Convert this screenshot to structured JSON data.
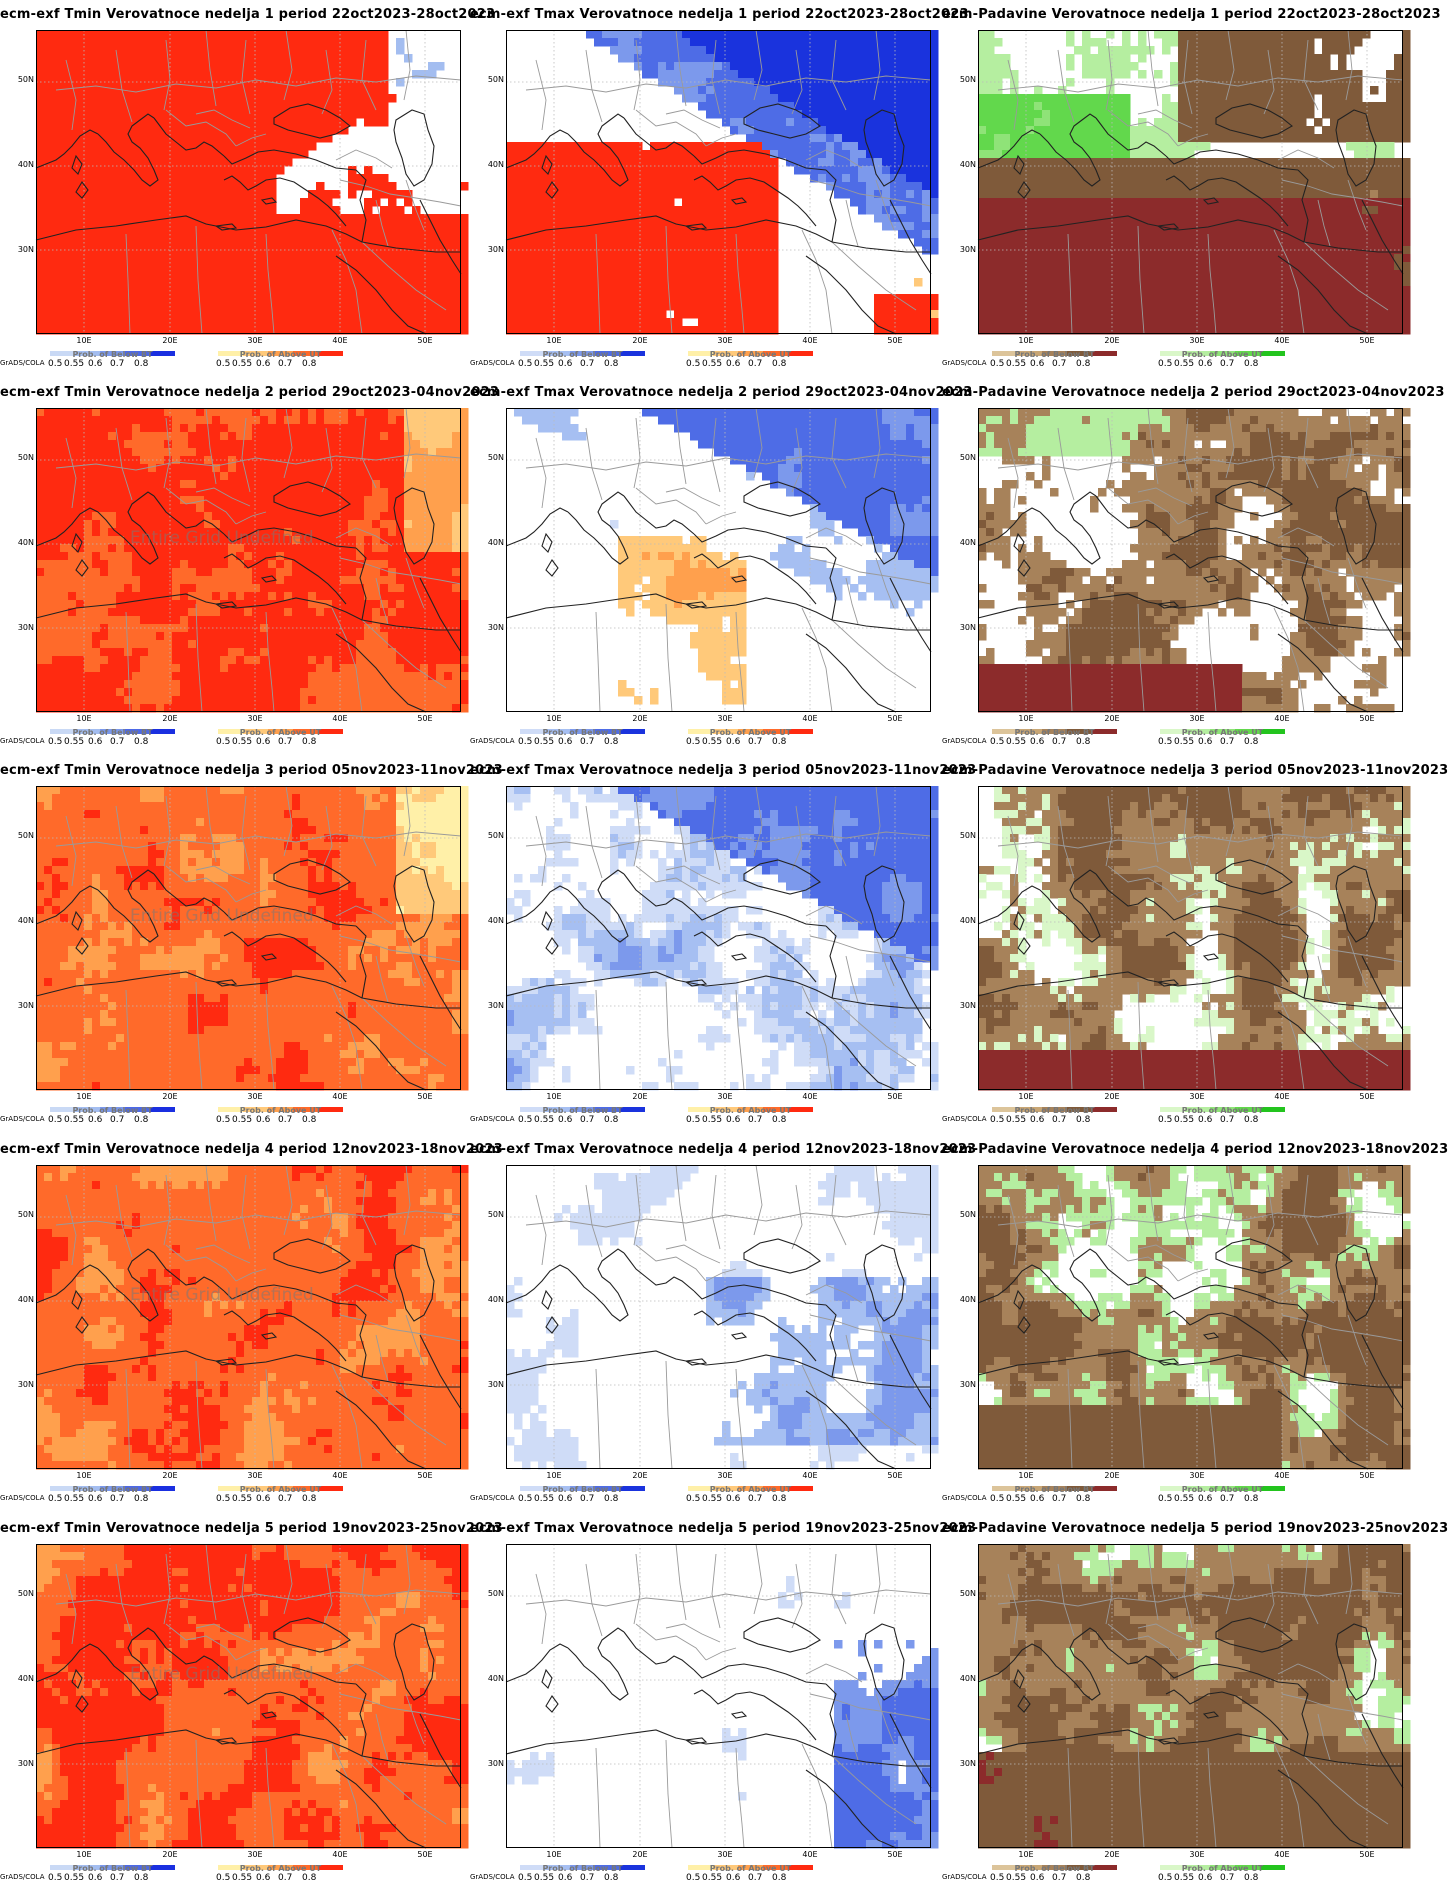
{
  "common": {
    "lat_labels": [
      "50N",
      "40N",
      "30N"
    ],
    "lon_labels": [
      "10E",
      "20E",
      "30E",
      "40E",
      "50E"
    ],
    "credit": "GrADS/COLA",
    "legend_ticks": [
      "0.5",
      "0.55",
      "0.6",
      "0.7",
      "0.8"
    ],
    "overlay_text": "Entire Grid Undefined"
  },
  "color_scales": {
    "tmin_below": [
      "#c9d9f5",
      "#a3bdf0",
      "#7a98ec",
      "#4d69e6",
      "#1a2fe0"
    ],
    "warm_above": [
      "#fff0a8",
      "#ffc97a",
      "#ffa04d",
      "#ff6a2a",
      "#ff2a10"
    ],
    "tmax_below": [
      "#cfdcf7",
      "#a6bff2",
      "#7c99ec",
      "#4e6ce6",
      "#1a33dd"
    ],
    "precip_below": [
      "#dcc49a",
      "#c8a675",
      "#a7825a",
      "#7f5a3a",
      "#8c2b2b"
    ],
    "precip_above": [
      "#d9f7c8",
      "#b5eea0",
      "#8fe378",
      "#62d84c",
      "#23c41e"
    ]
  },
  "legend_captions": {
    "below": "Prob. of Below BT",
    "above": "Prob. of Above UT"
  },
  "panels": [
    {
      "title": "ecm-exf Tmin Verovatnoce nedelja 1 period 22oct2023-28oct2023",
      "variable": "tmin",
      "week": 1,
      "overlay": false
    },
    {
      "title": "ecm-exf Tmax Verovatnoce nedelja 1 period 22oct2023-28oct2023",
      "variable": "tmax",
      "week": 1,
      "overlay": false
    },
    {
      "title": "ecm-Padavine Verovatnoce nedelja 1 period 22oct2023-28oct2023",
      "variable": "precip",
      "week": 1,
      "overlay": false
    },
    {
      "title": "ecm-exf Tmin Verovatnoce nedelja 2 period 29oct2023-04nov2023",
      "variable": "tmin",
      "week": 2,
      "overlay": true
    },
    {
      "title": "ecm-exf Tmax Verovatnoce nedelja 2 period 29oct2023-04nov2023",
      "variable": "tmax",
      "week": 2,
      "overlay": false
    },
    {
      "title": "ecm-Padavine Verovatnoce nedelja 2 period 29oct2023-04nov2023",
      "variable": "precip",
      "week": 2,
      "overlay": false
    },
    {
      "title": "ecm-exf Tmin Verovatnoce nedelja 3 period 05nov2023-11nov2023",
      "variable": "tmin",
      "week": 3,
      "overlay": true
    },
    {
      "title": "ecm-exf Tmax Verovatnoce nedelja 3 period 05nov2023-11nov2023",
      "variable": "tmax",
      "week": 3,
      "overlay": false
    },
    {
      "title": "ecm-Padavine Verovatnoce nedelja 3 period 05nov2023-11nov2023",
      "variable": "precip",
      "week": 3,
      "overlay": false
    },
    {
      "title": "ecm-exf Tmin Verovatnoce nedelja 4 period 12nov2023-18nov2023",
      "variable": "tmin",
      "week": 4,
      "overlay": true
    },
    {
      "title": "ecm-exf Tmax Verovatnoce nedelja 4 period 12nov2023-18nov2023",
      "variable": "tmax",
      "week": 4,
      "overlay": false
    },
    {
      "title": "ecm-Padavine Verovatnoce nedelja 4 period 12nov2023-18nov2023",
      "variable": "precip",
      "week": 4,
      "overlay": false
    },
    {
      "title": "ecm-exf Tmin Verovatnoce nedelja 5 period 19nov2023-25nov2023",
      "variable": "tmin",
      "week": 5,
      "overlay": true
    },
    {
      "title": "ecm-exf Tmax Verovatnoce nedelja 5 period 19nov2023-25nov2023",
      "variable": "tmax",
      "week": 5,
      "overlay": false
    },
    {
      "title": "ecm-Padavine Verovatnoce nedelja 5 period 19nov2023-25nov2023",
      "variable": "precip",
      "week": 5,
      "overlay": false
    }
  ]
}
